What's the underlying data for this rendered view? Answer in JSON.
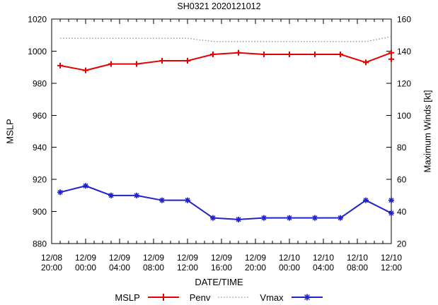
{
  "chart_data": {
    "type": "line",
    "title": "SH0321 2020121012",
    "xlabel": "DATE/TIME",
    "ylabel": "MSLP",
    "y2label": "Maximum Winds [kt]",
    "ylim": [
      880,
      1020
    ],
    "y2lim": [
      20,
      160
    ],
    "grid": false,
    "y_ticks_left": [
      880,
      900,
      920,
      940,
      960,
      980,
      1000,
      1020
    ],
    "y_ticks_right": [
      20,
      40,
      60,
      80,
      100,
      120,
      140,
      160
    ],
    "x_hours_range": [
      0,
      40
    ],
    "x_minor_step_hours": 1,
    "x_ticks": [
      {
        "hour": 0,
        "date": "12/08",
        "time": "20:00"
      },
      {
        "hour": 4,
        "date": "12/09",
        "time": "00:00"
      },
      {
        "hour": 8,
        "date": "12/09",
        "time": "04:00"
      },
      {
        "hour": 12,
        "date": "12/09",
        "time": "08:00"
      },
      {
        "hour": 16,
        "date": "12/09",
        "time": "12:00"
      },
      {
        "hour": 20,
        "date": "12/09",
        "time": "16:00"
      },
      {
        "hour": 24,
        "date": "12/09",
        "time": "20:00"
      },
      {
        "hour": 28,
        "date": "12/10",
        "time": "00:00"
      },
      {
        "hour": 32,
        "date": "12/10",
        "time": "04:00"
      },
      {
        "hour": 36,
        "date": "12/10",
        "time": "08:00"
      },
      {
        "hour": 40,
        "date": "12/10",
        "time": "12:00"
      }
    ],
    "x_hours": [
      1,
      4,
      7,
      10,
      13,
      16,
      19,
      22,
      25,
      28,
      31,
      34,
      37,
      40
    ],
    "series": [
      {
        "name": "MSLP",
        "axis": "left",
        "color": "#e60000",
        "line": "solid",
        "marker": "plus",
        "values": [
          991,
          988,
          992,
          992,
          994,
          994,
          998,
          999,
          998,
          998,
          998,
          998,
          993,
          999
        ],
        "extra_points": [
          {
            "x_hour": 40,
            "value": 995
          }
        ]
      },
      {
        "name": "Penv",
        "axis": "left",
        "color": "#909090",
        "line": "dotted",
        "marker": "none",
        "values": [
          1008,
          1008,
          1008,
          1008,
          1008,
          1008,
          1006,
          1006,
          1006,
          1006,
          1006,
          1006,
          1006,
          1009
        ],
        "extra_points": []
      },
      {
        "name": "Vmax",
        "axis": "right",
        "color": "#2222cc",
        "line": "solid",
        "marker": "star",
        "values": [
          52,
          56,
          50,
          50,
          47,
          47,
          36,
          35,
          36,
          36,
          36,
          36,
          47,
          39
        ],
        "extra_points": [
          {
            "x_hour": 40,
            "value": 47
          }
        ]
      }
    ],
    "legend": {
      "position": "bottom-center",
      "entries": [
        {
          "label": "MSLP"
        },
        {
          "label": "Penv"
        },
        {
          "label": "Vmax"
        }
      ]
    }
  }
}
